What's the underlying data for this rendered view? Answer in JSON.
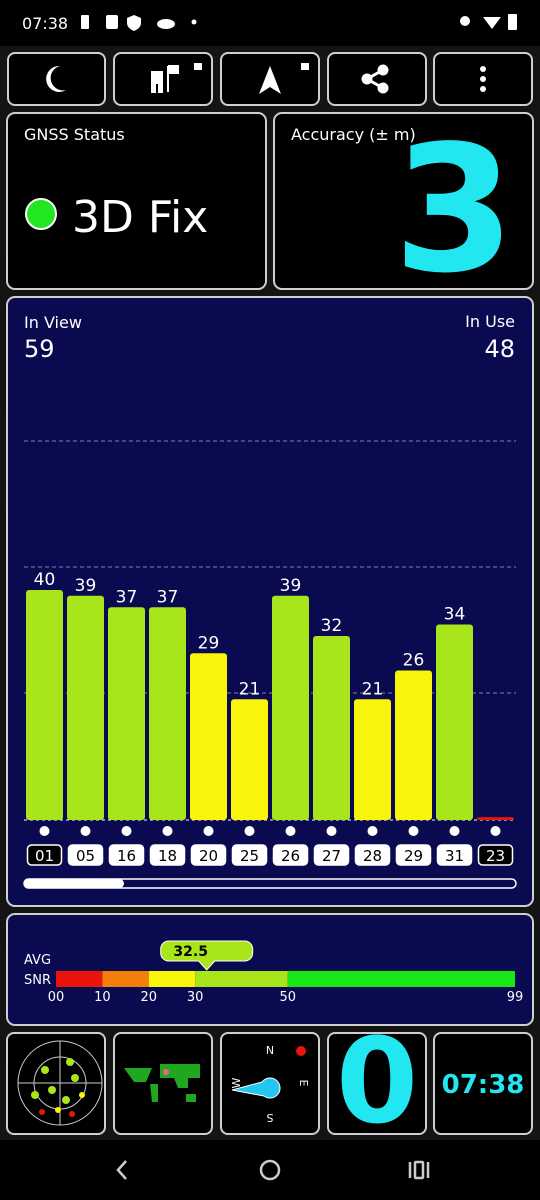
{
  "status_bar": {
    "time": "07:38"
  },
  "gnss_status": {
    "label": "GNSS Status",
    "value": "3D Fix"
  },
  "accuracy": {
    "label": "Accuracy (± m)",
    "value": 3
  },
  "signal": {
    "in_view_label": "In View",
    "in_view": 59,
    "in_use_label": "In Use",
    "in_use": 48,
    "satellites": [
      "01",
      "05",
      "16",
      "18",
      "20",
      "25",
      "26",
      "27",
      "28",
      "29",
      "31",
      "23"
    ],
    "values": [
      40,
      39,
      37,
      37,
      29,
      21,
      39,
      32,
      21,
      26,
      34,
      0.5
    ],
    "value_labels": [
      "40",
      "39",
      "37",
      "37",
      "29",
      "21",
      "39",
      "32",
      "21",
      "26",
      "34",
      null
    ],
    "used": [
      false,
      true,
      true,
      true,
      true,
      true,
      true,
      true,
      true,
      true,
      true,
      false
    ]
  },
  "snr": {
    "avg_label": "AVG",
    "snr_label": "SNR",
    "average": 32.5,
    "xlim": [
      0,
      99
    ],
    "xticks": [
      {
        "value": 0,
        "label": "00"
      },
      10,
      20,
      30,
      50,
      99
    ],
    "bands": [
      {
        "from": 0,
        "to": 10,
        "color": "#e9140c"
      },
      {
        "from": 10,
        "to": 20,
        "color": "#f57d0a"
      },
      {
        "from": 20,
        "to": 30,
        "color": "#f8f40c"
      },
      {
        "from": 30,
        "to": 50,
        "color": "#a8e61b"
      },
      {
        "from": 50,
        "to": 99,
        "color": "#19e619"
      }
    ]
  },
  "tiles": {
    "speed": 0,
    "clock": "07:38",
    "compass": [
      "N",
      "E",
      "S",
      "W"
    ]
  }
}
